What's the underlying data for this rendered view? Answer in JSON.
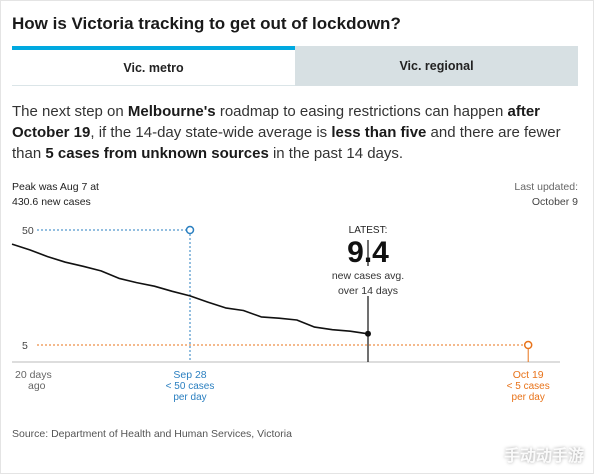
{
  "title": "How is Victoria tracking to get out of lockdown?",
  "tabs": [
    {
      "label": "Vic. metro",
      "active": true
    },
    {
      "label": "Vic. regional",
      "active": false
    }
  ],
  "intro": {
    "t1": "The next step on ",
    "b1": "Melbourne's",
    "t2": " roadmap to easing restrictions can happen ",
    "b2": "after October 19",
    "t3": ", if the 14-day state-wide average is ",
    "b3": "less than five",
    "t4": " and there are fewer than ",
    "b4": "5 cases from unknown sources",
    "t5": " in the past 14 days."
  },
  "peak": {
    "line1": "Peak was Aug 7 at",
    "line2": "430.6 new cases"
  },
  "updated": {
    "label": "Last updated:",
    "date": "October 9"
  },
  "colors": {
    "accent": "#00a9e0",
    "line": "#111111",
    "target": "#e8731a",
    "threshold": "#2a7fc0",
    "grid": "#cccccc",
    "tab_inactive": "#d7e0e3"
  },
  "chart_data": {
    "type": "line",
    "xlim": [
      -20,
      10
    ],
    "ylim": [
      5,
      50
    ],
    "y_reference_lines": [
      {
        "value": 50,
        "label": "50",
        "color": "#2a7fc0"
      },
      {
        "value": 5,
        "label": "5",
        "color": "#e8731a"
      }
    ],
    "series": [
      {
        "name": "",
        "x": [
          -20,
          -19,
          -18,
          -17,
          -16,
          -15,
          -14,
          -13,
          -12,
          -11,
          -10,
          -9,
          -8,
          -7,
          -6,
          -5,
          -4,
          -3,
          -2,
          -1,
          0
        ],
        "y": [
          44.5,
          42.2,
          39.6,
          37.4,
          35.8,
          34.0,
          31.1,
          29.4,
          28.0,
          26.0,
          24.2,
          21.8,
          19.5,
          18.5,
          16.0,
          15.5,
          14.8,
          12.0,
          11.0,
          10.4,
          9.4
        ]
      }
    ],
    "latest": {
      "x": 0,
      "y": 9.4,
      "label": "LATEST:",
      "value": "9.4",
      "sub1": "new cases avg.",
      "sub2": "over 14 days"
    },
    "markers": [
      {
        "x": -10,
        "y": 50,
        "color": "#2a7fc0",
        "line1": "Sep 28",
        "line2": "< 50 cases",
        "line3": "per day"
      },
      {
        "x": 9,
        "y": 5,
        "color": "#e8731a",
        "line1": "Oct 19",
        "line2": "< 5 cases",
        "line3": "per day"
      }
    ],
    "start_label": {
      "line1": "20 days",
      "line2": "ago"
    }
  },
  "source": "Source: Department of Health and Human Services, Victoria",
  "watermark": "手动动手游"
}
